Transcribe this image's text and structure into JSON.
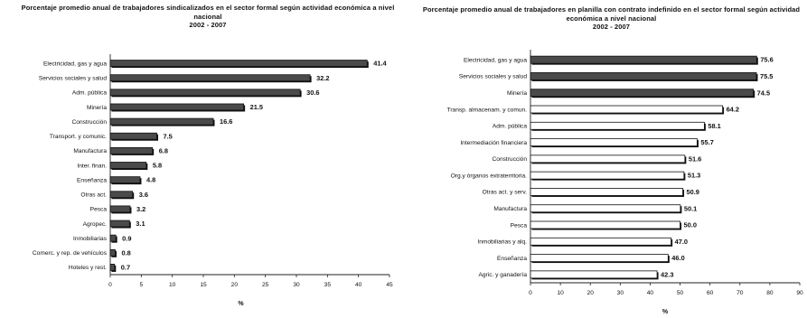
{
  "chart_data": [
    {
      "type": "bar",
      "orientation": "horizontal",
      "title": "Porcentaje promedio anual de trabajadores sindicalizados en el sector formal según actividad económica a nivel nacional",
      "subtitle": "2002 - 2007",
      "xlabel": "%",
      "ylabel": "",
      "categories": [
        "Electricidad, gas y agua",
        "Servicios sociales y salud",
        "Adm. pública",
        "Minería",
        "Construcción",
        "Transport. y comunic.",
        "Manufactura",
        "Inter. finan.",
        "Enseñanza",
        "Otras act.",
        "Pesca",
        "Agropec.",
        "Inmobiliarias",
        "Comerc. y rep. de vehículos",
        "Hoteles y rest."
      ],
      "values": [
        41.4,
        32.2,
        30.6,
        21.5,
        16.6,
        7.5,
        6.8,
        5.8,
        4.8,
        3.6,
        3.2,
        3.1,
        0.9,
        0.8,
        0.7
      ],
      "value_labels": [
        "41.4",
        "32.2",
        "30.6",
        "21.5",
        "16.6",
        "7.5",
        "6.8",
        "5.8",
        "4.8",
        "3.6",
        "3.2",
        "3.1",
        "0.9",
        "0.8",
        "0.7"
      ],
      "xlim": [
        0,
        45
      ],
      "xticks": [
        0,
        5,
        10,
        15,
        20,
        25,
        30,
        35,
        40,
        45
      ],
      "xtick_labels": [
        "0",
        "5",
        "10",
        "15",
        "20",
        "25",
        "30",
        "35",
        "40",
        "45"
      ],
      "grid": false,
      "bar_fill": "#4a4a4a"
    },
    {
      "type": "bar",
      "orientation": "horizontal",
      "title": "Porcentaje promedio anual de trabajadores en planilla con contrato indefinido en el sector formal según actividad económica a nivel nacional",
      "subtitle": "2002 - 2007",
      "xlabel": "%",
      "ylabel": "",
      "categories": [
        "Electricidad, gas y agua",
        "Servicios sociales y salud",
        "Minería",
        "Transp. almacenam. y comun.",
        "Adm. pública",
        "Intermediación financiera",
        "Construcción",
        "Org.y órganos extraterritoria.",
        "Otras act. y serv.",
        "Manufactura",
        "Pesca",
        "Inmobiliarias y alq.",
        "Enseñanza",
        "Agric. y ganadería"
      ],
      "values": [
        75.6,
        75.5,
        74.5,
        64.2,
        58.1,
        55.7,
        51.6,
        51.3,
        50.9,
        50.1,
        50.0,
        47.0,
        46.0,
        42.3
      ],
      "value_labels": [
        "75.6",
        "75.5",
        "74.5",
        "64.2",
        "58.1",
        "55.7",
        "51.6",
        "51.3",
        "50.9",
        "50.1",
        "50.0",
        "47.0",
        "46.0",
        "42.3"
      ],
      "highlighted_categories": [
        "Electricidad, gas y agua",
        "Servicios sociales y salud",
        "Minería"
      ],
      "xlim": [
        0,
        90
      ],
      "xticks": [
        0,
        10,
        20,
        30,
        40,
        50,
        60,
        70,
        80,
        90
      ],
      "xtick_labels": [
        "0",
        "10",
        "20",
        "30",
        "40",
        "50",
        "60",
        "70",
        "80",
        "90"
      ],
      "grid": false,
      "bar_fill_highlight": "#4a4a4a",
      "bar_fill_default": "#ffffff"
    }
  ]
}
